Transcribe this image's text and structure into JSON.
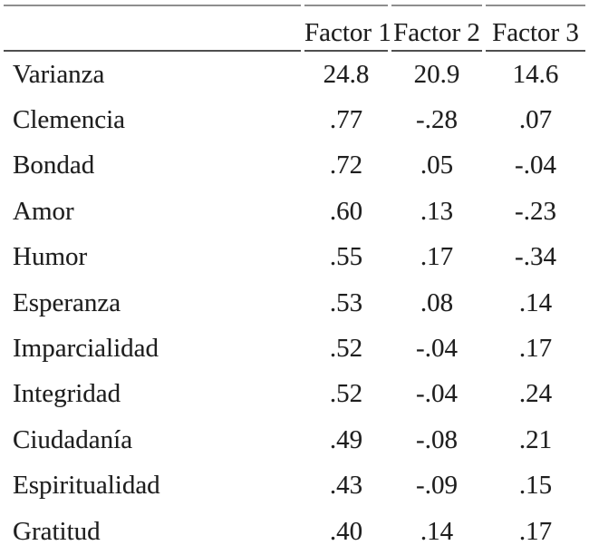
{
  "colors": {
    "background": "#ffffff",
    "text": "#1e1e1e",
    "rule_top": "#8e8e8e",
    "rule_header_bottom": "#4f4f4f"
  },
  "table": {
    "columns": [
      "",
      "Factor 1",
      "Factor 2",
      "Factor 3"
    ],
    "rows": [
      {
        "label": "Varianza",
        "values": [
          "24.8",
          "20.9",
          "14.6"
        ]
      },
      {
        "label": "Clemencia",
        "values": [
          ".77",
          "-.28",
          ".07"
        ]
      },
      {
        "label": "Bondad",
        "values": [
          ".72",
          ".05",
          "-.04"
        ]
      },
      {
        "label": "Amor",
        "values": [
          ".60",
          ".13",
          "-.23"
        ]
      },
      {
        "label": "Humor",
        "values": [
          ".55",
          ".17",
          "-.34"
        ]
      },
      {
        "label": "Esperanza",
        "values": [
          ".53",
          ".08",
          ".14"
        ]
      },
      {
        "label": "Imparcialidad",
        "values": [
          ".52",
          "-.04",
          ".17"
        ]
      },
      {
        "label": "Integridad",
        "values": [
          ".52",
          "-.04",
          ".24"
        ]
      },
      {
        "label": "Ciudadanía",
        "values": [
          ".49",
          "-.08",
          ".21"
        ]
      },
      {
        "label": "Espiritualidad",
        "values": [
          ".43",
          "-.09",
          ".15"
        ]
      },
      {
        "label": "Gratitud",
        "values": [
          ".40",
          ".14",
          ".17"
        ]
      }
    ]
  },
  "chart_data": {
    "type": "table",
    "columns": [
      "",
      "Factor 1",
      "Factor 2",
      "Factor 3"
    ],
    "rows": [
      [
        "Varianza",
        24.8,
        20.9,
        14.6
      ],
      [
        "Clemencia",
        0.77,
        -0.28,
        0.07
      ],
      [
        "Bondad",
        0.72,
        0.05,
        -0.04
      ],
      [
        "Amor",
        0.6,
        0.13,
        -0.23
      ],
      [
        "Humor",
        0.55,
        0.17,
        -0.34
      ],
      [
        "Esperanza",
        0.53,
        0.08,
        0.14
      ],
      [
        "Imparcialidad",
        0.52,
        -0.04,
        0.17
      ],
      [
        "Integridad",
        0.52,
        -0.04,
        0.24
      ],
      [
        "Ciudadanía",
        0.49,
        -0.08,
        0.21
      ],
      [
        "Espiritualidad",
        0.43,
        -0.09,
        0.15
      ],
      [
        "Gratitud",
        0.4,
        0.14,
        0.17
      ]
    ]
  }
}
